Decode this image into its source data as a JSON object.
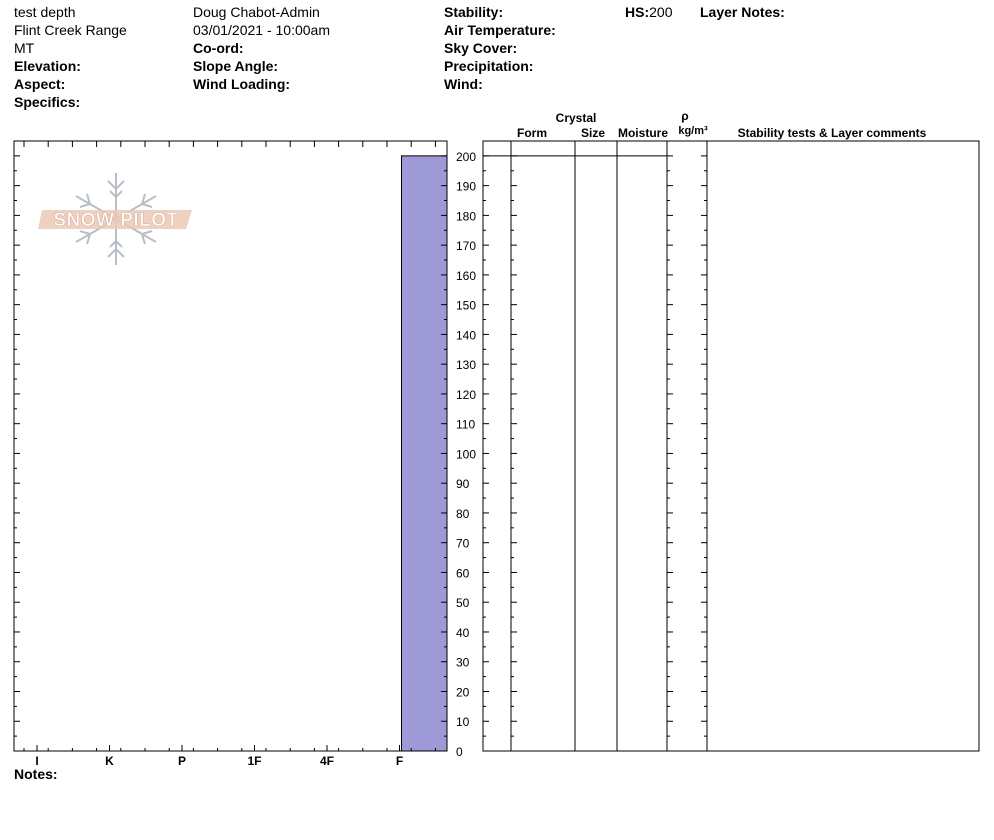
{
  "header": {
    "site_name": "test depth",
    "observer": "Doug Chabot-Admin",
    "range": "Flint Creek Range",
    "datetime": "03/01/2021 - 10:00am",
    "state": "MT",
    "elevation_label": "Elevation:",
    "aspect_label": "Aspect:",
    "specifics_label": "Specifics:",
    "coord_label": "Co-ord:",
    "slope_angle_label": "Slope Angle:",
    "wind_loading_label": "Wind Loading:",
    "stability_label": "Stability:",
    "air_temp_label": "Air Temperature:",
    "sky_cover_label": "Sky Cover:",
    "precip_label": "Precipitation:",
    "wind_label": "Wind:",
    "hs_label": "HS:",
    "hs_value": "200",
    "layer_notes_label": "Layer Notes:"
  },
  "columns": {
    "crystal": "Crystal",
    "form": "Form",
    "size": "Size",
    "moisture": "Moisture",
    "rho": "ρ",
    "density_unit": "kg/m³",
    "comments": "Stability tests & Layer comments"
  },
  "notes_label": "Notes:",
  "logo_text": "SNOW PILOT",
  "chart_data": {
    "type": "bar",
    "x_categories": [
      "I",
      "K",
      "P",
      "1F",
      "4F",
      "F"
    ],
    "y_ticks": [
      0,
      10,
      20,
      30,
      40,
      50,
      60,
      70,
      80,
      90,
      100,
      110,
      120,
      130,
      140,
      150,
      160,
      170,
      180,
      190,
      200
    ],
    "ylim": [
      0,
      205
    ],
    "layers": [
      {
        "bottom": 0,
        "top": 200,
        "hardness": "F"
      }
    ],
    "color": "#9e9ad8"
  }
}
